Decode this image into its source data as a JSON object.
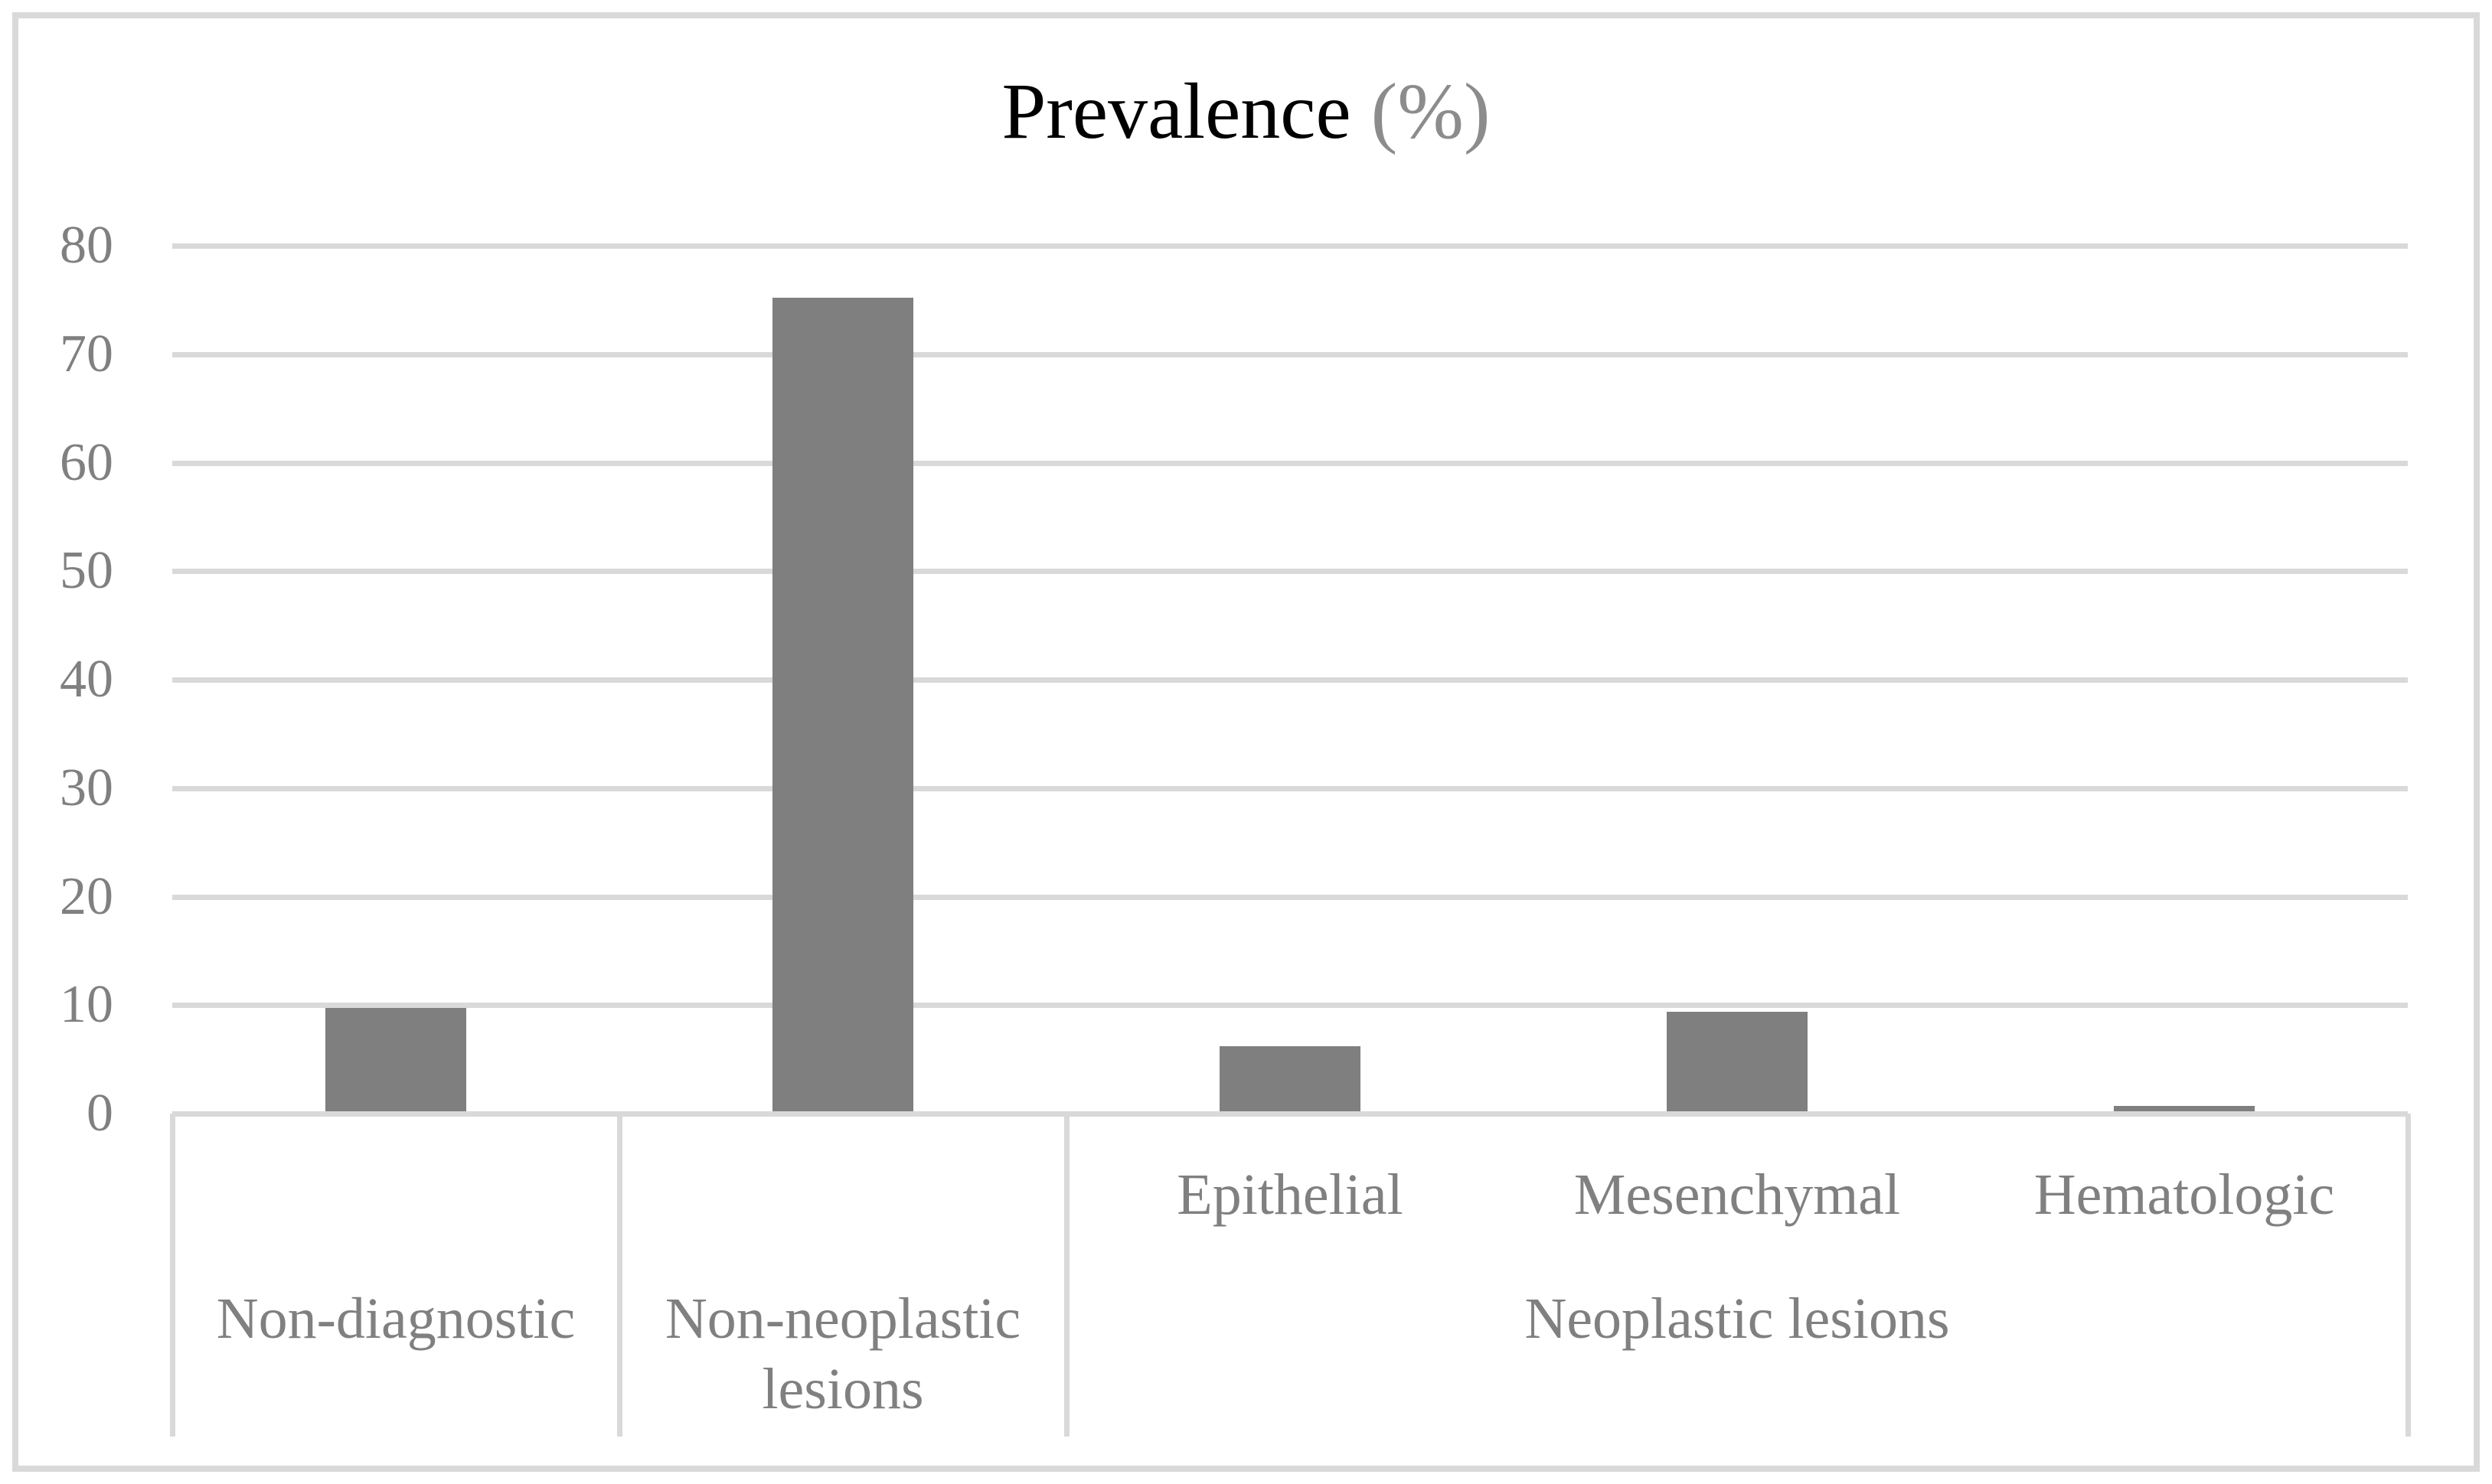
{
  "figure": {
    "title_main": "Prevalence",
    "title_unit": " (%)"
  },
  "chart_data": {
    "type": "bar",
    "title": "Prevalence (%)",
    "categories": [
      "Non-diagnostic",
      "Non-neoplastic lesions",
      "Epithelial",
      "Mesenchymal",
      "Hematologic"
    ],
    "leaf_axis_labels": [
      "",
      "",
      "Epithelial",
      "Mesenchymal",
      "Hematologic"
    ],
    "group_axis_labels": [
      {
        "label": "Non-diagnostic",
        "start": 0,
        "end": 1
      },
      {
        "label": "Non-neoplastic lesions",
        "start": 1,
        "end": 2
      },
      {
        "label": "Neoplastic lesions",
        "start": 2,
        "end": 5
      }
    ],
    "values": [
      9.5,
      75,
      6,
      9.2,
      0.5
    ],
    "series": [
      {
        "name": "Prevalence (%)",
        "values": [
          9.5,
          75,
          6,
          9.2,
          0.5
        ]
      }
    ],
    "xlabel": "",
    "ylabel": "",
    "ylim": [
      0,
      80
    ],
    "yticks": [
      0,
      10,
      20,
      30,
      40,
      50,
      60,
      70,
      80
    ],
    "grid": true,
    "legend_position": "none",
    "colors": {
      "bar": "#7f7f7f",
      "gridline": "#d9d9d9",
      "axis_text": "#808080",
      "title_main": "#000000",
      "title_unit": "#8c8c8c",
      "figure_border": "#d9d9d9"
    }
  }
}
